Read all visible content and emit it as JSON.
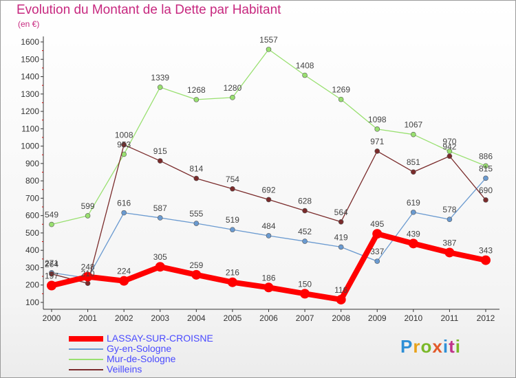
{
  "header": {
    "title": "Evolution du Montant de la Dette par Habitant",
    "unit": "(en €)"
  },
  "logo": {
    "text": "Proxiti",
    "colors": [
      "#2e8fd6",
      "#e8a21b",
      "#7ab829",
      "#e25a2a",
      "#2e8fd6",
      "#c0338a",
      "#7ab829"
    ]
  },
  "chart_data": {
    "type": "line",
    "x": [
      "2000",
      "2001",
      "2002",
      "2003",
      "2004",
      "2005",
      "2006",
      "2007",
      "2008",
      "2009",
      "2010",
      "2011",
      "2012"
    ],
    "ylim": [
      100,
      1600
    ],
    "yticks": [
      100,
      200,
      300,
      400,
      500,
      600,
      700,
      800,
      900,
      1000,
      1100,
      1200,
      1300,
      1400,
      1500,
      1600
    ],
    "grid": false,
    "legend_placement": "bottom-left",
    "series": [
      {
        "name": "LASSAY-SUR-CROISNE",
        "color": "#ff0000",
        "values": [
          197,
          248,
          224,
          305,
          259,
          216,
          186,
          150,
          116,
          495,
          439,
          387,
          343
        ],
        "labels": [
          "197",
          "248",
          "224",
          "305",
          "259",
          "216",
          "186",
          "150",
          "116",
          "495",
          "439",
          "387",
          "343"
        ]
      },
      {
        "name": "Gy-en-Sologne",
        "color": "#6a9ad0",
        "values": [
          271,
          240,
          616,
          587,
          555,
          519,
          484,
          452,
          419,
          337,
          619,
          578,
          815
        ],
        "labels": [
          "271",
          "",
          "616",
          "587",
          "555",
          "519",
          "484",
          "452",
          "419",
          "337",
          "619",
          "578",
          "815"
        ]
      },
      {
        "name": "Mur-de-Sologne",
        "color": "#99e070",
        "values": [
          549,
          599,
          953,
          1339,
          1268,
          1280,
          1557,
          1408,
          1269,
          1098,
          1067,
          970,
          886
        ],
        "labels": [
          "549",
          "599",
          "953",
          "1339",
          "1268",
          "1280",
          "1557",
          "1408",
          "1269",
          "1098",
          "1067",
          "970",
          "886"
        ]
      },
      {
        "name": "Veilleins",
        "color": "#7a2b2b",
        "values": [
          264,
          210,
          1008,
          915,
          814,
          754,
          692,
          628,
          564,
          971,
          851,
          942,
          690
        ],
        "labels": [
          "264",
          "210",
          "1008",
          "915",
          "814",
          "754",
          "692",
          "628",
          "564",
          "971",
          "851",
          "942",
          "690"
        ]
      }
    ]
  }
}
